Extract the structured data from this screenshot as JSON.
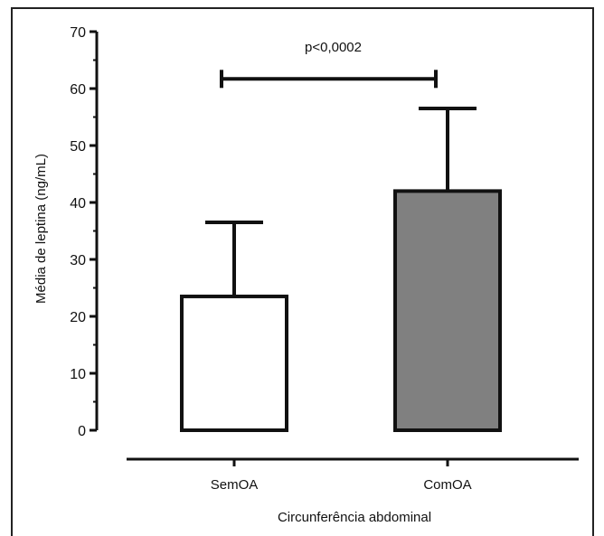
{
  "chart_data": {
    "type": "bar",
    "categories": [
      "SemOA",
      "ComOA"
    ],
    "values": [
      23.5,
      42.0
    ],
    "error_upper": [
      36.5,
      56.5
    ],
    "bar_colors": [
      "#ffffff",
      "#808080"
    ],
    "xlabel": "Circunferência abdominal",
    "ylabel": "Média de leptina (ng/mL)",
    "ylim": [
      0,
      70
    ],
    "yticks": [
      "0",
      "10",
      "20",
      "30",
      "40",
      "50",
      "60",
      "70"
    ],
    "annotation": {
      "text": "p<0,0002",
      "y": 61.7
    },
    "grid": false
  }
}
